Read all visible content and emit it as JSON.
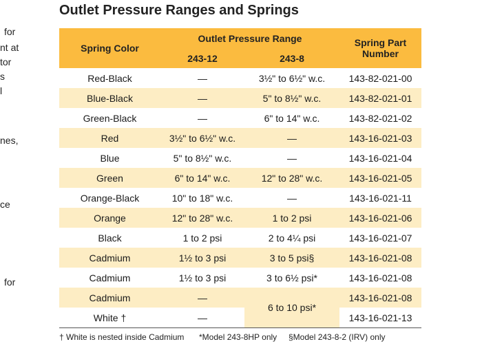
{
  "title": "Outlet Pressure Ranges and Springs",
  "left_fragments": [
    "for",
    "nt at",
    "tor",
    "s",
    "l",
    "nes,",
    "ce",
    "for"
  ],
  "table": {
    "headers": {
      "spring_color": "Spring Color",
      "outlet_range": "Outlet Pressure Range",
      "model_a": "243-12",
      "model_b": "243-8",
      "part_number_line1": "Spring Part",
      "part_number_line2": "Number"
    },
    "rows": [
      {
        "color": "Red-Black",
        "a": "—",
        "b": "3½\" to 6½\" w.c.",
        "part": "143-82-021-00"
      },
      {
        "color": "Blue-Black",
        "a": "—",
        "b": "5\" to 8½\" w.c.",
        "part": "143-82-021-01"
      },
      {
        "color": "Green-Black",
        "a": "—",
        "b": "6\" to 14\" w.c.",
        "part": "143-82-021-02"
      },
      {
        "color": "Red",
        "a": "3½\" to 6½\" w.c.",
        "b": "—",
        "part": "143-16-021-03"
      },
      {
        "color": "Blue",
        "a": "5\" to 8½\" w.c.",
        "b": "—",
        "part": "143-16-021-04"
      },
      {
        "color": "Green",
        "a": "6\" to 14\" w.c.",
        "b": "12\" to 28\" w.c.",
        "part": "143-16-021-05"
      },
      {
        "color": "Orange-Black",
        "a": "10\" to 18\" w.c.",
        "b": "—",
        "part": "143-16-021-11"
      },
      {
        "color": "Orange",
        "a": "12\" to 28\" w.c.",
        "b": "1 to 2 psi",
        "part": "143-16-021-06"
      },
      {
        "color": "Black",
        "a": "1 to 2 psi",
        "b": "2 to 4¼ psi",
        "part": "143-16-021-07"
      },
      {
        "color": "Cadmium",
        "a": "1½ to 3 psi",
        "b": "3 to 5 psi§",
        "part": "143-16-021-08"
      },
      {
        "color": "Cadmium",
        "a": "1½ to 3 psi",
        "b": "3 to 6½ psi*",
        "part": "143-16-021-08"
      },
      {
        "color": "Cadmium",
        "a": "—",
        "b": "6 to 10 psi*",
        "part": "143-16-021-08"
      },
      {
        "color": "White †",
        "a": "—",
        "part": "143-16-021-13"
      }
    ]
  },
  "footnotes": {
    "dagger": "† White is nested inside Cadmium",
    "asterisk": "*Model 243-8HP only",
    "section": "§Model 243-8-2 (IRV) only"
  },
  "colors": {
    "header_bg": "#fbbb3f",
    "alt_row_bg": "#fdedc4",
    "text": "#1a1a1a"
  }
}
